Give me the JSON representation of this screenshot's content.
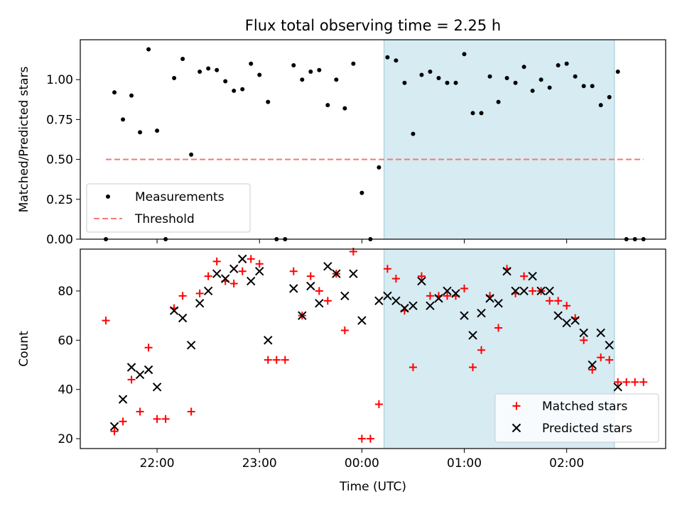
{
  "title": "Flux total observing time = 2.25 h",
  "chart_data": [
    {
      "type": "scatter",
      "ylabel": "Matched/Predicted stars",
      "ylim": [
        0,
        1.25
      ],
      "yticks": [
        0.0,
        0.25,
        0.5,
        0.75,
        1.0
      ],
      "ytick_labels": [
        "0.00",
        "0.25",
        "0.50",
        "0.75",
        "1.00"
      ],
      "x_range": [
        "21:15",
        "02:58"
      ],
      "shaded_interval": [
        "00:13",
        "02:28"
      ],
      "legend_position": "lower-left",
      "series": [
        {
          "name": "Measurements",
          "marker": "dot",
          "color": "#000000",
          "points": [
            {
              "x": "21:30",
              "y": 0.0
            },
            {
              "x": "21:35",
              "y": 0.92
            },
            {
              "x": "21:40",
              "y": 0.75
            },
            {
              "x": "21:45",
              "y": 0.9
            },
            {
              "x": "21:50",
              "y": 0.67
            },
            {
              "x": "21:55",
              "y": 1.19
            },
            {
              "x": "22:00",
              "y": 0.68
            },
            {
              "x": "22:05",
              "y": 0.0
            },
            {
              "x": "22:10",
              "y": 1.01
            },
            {
              "x": "22:15",
              "y": 1.13
            },
            {
              "x": "22:20",
              "y": 0.53
            },
            {
              "x": "22:25",
              "y": 1.05
            },
            {
              "x": "22:30",
              "y": 1.07
            },
            {
              "x": "22:35",
              "y": 1.06
            },
            {
              "x": "22:40",
              "y": 0.99
            },
            {
              "x": "22:45",
              "y": 0.93
            },
            {
              "x": "22:50",
              "y": 0.94
            },
            {
              "x": "22:55",
              "y": 1.1
            },
            {
              "x": "23:00",
              "y": 1.03
            },
            {
              "x": "23:05",
              "y": 0.86
            },
            {
              "x": "23:10",
              "y": 0.0
            },
            {
              "x": "23:15",
              "y": 0.0
            },
            {
              "x": "23:20",
              "y": 1.09
            },
            {
              "x": "23:25",
              "y": 1.0
            },
            {
              "x": "23:30",
              "y": 1.05
            },
            {
              "x": "23:35",
              "y": 1.06
            },
            {
              "x": "23:40",
              "y": 0.84
            },
            {
              "x": "23:45",
              "y": 1.0
            },
            {
              "x": "23:50",
              "y": 0.82
            },
            {
              "x": "23:55",
              "y": 1.1
            },
            {
              "x": "00:00",
              "y": 0.29
            },
            {
              "x": "00:05",
              "y": 0.0
            },
            {
              "x": "00:10",
              "y": 0.45
            },
            {
              "x": "00:15",
              "y": 1.14
            },
            {
              "x": "00:20",
              "y": 1.12
            },
            {
              "x": "00:25",
              "y": 0.98
            },
            {
              "x": "00:30",
              "y": 0.66
            },
            {
              "x": "00:35",
              "y": 1.03
            },
            {
              "x": "00:40",
              "y": 1.05
            },
            {
              "x": "00:45",
              "y": 1.01
            },
            {
              "x": "00:50",
              "y": 0.98
            },
            {
              "x": "00:55",
              "y": 0.98
            },
            {
              "x": "01:00",
              "y": 1.16
            },
            {
              "x": "01:05",
              "y": 0.79
            },
            {
              "x": "01:10",
              "y": 0.79
            },
            {
              "x": "01:15",
              "y": 1.02
            },
            {
              "x": "01:20",
              "y": 0.86
            },
            {
              "x": "01:25",
              "y": 1.01
            },
            {
              "x": "01:30",
              "y": 0.98
            },
            {
              "x": "01:35",
              "y": 1.08
            },
            {
              "x": "01:40",
              "y": 0.93
            },
            {
              "x": "01:45",
              "y": 1.0
            },
            {
              "x": "01:50",
              "y": 0.95
            },
            {
              "x": "01:55",
              "y": 1.09
            },
            {
              "x": "02:00",
              "y": 1.1
            },
            {
              "x": "02:05",
              "y": 1.02
            },
            {
              "x": "02:10",
              "y": 0.96
            },
            {
              "x": "02:15",
              "y": 0.96
            },
            {
              "x": "02:20",
              "y": 0.84
            },
            {
              "x": "02:25",
              "y": 0.89
            },
            {
              "x": "02:30",
              "y": 1.05
            },
            {
              "x": "02:35",
              "y": 0.0
            },
            {
              "x": "02:40",
              "y": 0.0
            },
            {
              "x": "02:45",
              "y": 0.0
            }
          ]
        },
        {
          "name": "Threshold",
          "marker": "dashed-line",
          "color": "#f47a7a",
          "points": [
            {
              "x": "21:30",
              "y": 0.5
            },
            {
              "x": "02:45",
              "y": 0.5
            }
          ]
        }
      ]
    },
    {
      "type": "scatter",
      "ylabel": "Count",
      "xlabel": "Time (UTC)",
      "ylim": [
        16,
        97
      ],
      "yticks": [
        20,
        40,
        60,
        80
      ],
      "ytick_labels": [
        "20",
        "40",
        "60",
        "80"
      ],
      "xticks": [
        "22:00",
        "23:00",
        "00:00",
        "01:00",
        "02:00"
      ],
      "x_range": [
        "21:15",
        "02:58"
      ],
      "shaded_interval": [
        "00:13",
        "02:28"
      ],
      "legend_position": "lower-right",
      "series": [
        {
          "name": "Matched stars",
          "marker": "plus",
          "color": "#ff0000",
          "points": [
            {
              "x": "21:30",
              "y": 68
            },
            {
              "x": "21:35",
              "y": 23
            },
            {
              "x": "21:40",
              "y": 27
            },
            {
              "x": "21:45",
              "y": 44
            },
            {
              "x": "21:50",
              "y": 31
            },
            {
              "x": "21:55",
              "y": 57
            },
            {
              "x": "22:00",
              "y": 28
            },
            {
              "x": "22:05",
              "y": 28
            },
            {
              "x": "22:10",
              "y": 73
            },
            {
              "x": "22:15",
              "y": 78
            },
            {
              "x": "22:20",
              "y": 31
            },
            {
              "x": "22:25",
              "y": 79
            },
            {
              "x": "22:30",
              "y": 86
            },
            {
              "x": "22:35",
              "y": 92
            },
            {
              "x": "22:40",
              "y": 84
            },
            {
              "x": "22:45",
              "y": 83
            },
            {
              "x": "22:50",
              "y": 88
            },
            {
              "x": "22:55",
              "y": 93
            },
            {
              "x": "23:00",
              "y": 91
            },
            {
              "x": "23:05",
              "y": 52
            },
            {
              "x": "23:10",
              "y": 52
            },
            {
              "x": "23:15",
              "y": 52
            },
            {
              "x": "23:20",
              "y": 88
            },
            {
              "x": "23:25",
              "y": 70
            },
            {
              "x": "23:30",
              "y": 86
            },
            {
              "x": "23:35",
              "y": 80
            },
            {
              "x": "23:40",
              "y": 76
            },
            {
              "x": "23:45",
              "y": 87
            },
            {
              "x": "23:50",
              "y": 64
            },
            {
              "x": "23:55",
              "y": 96
            },
            {
              "x": "00:00",
              "y": 20
            },
            {
              "x": "00:05",
              "y": 20
            },
            {
              "x": "00:10",
              "y": 34
            },
            {
              "x": "00:15",
              "y": 89
            },
            {
              "x": "00:20",
              "y": 85
            },
            {
              "x": "00:25",
              "y": 72
            },
            {
              "x": "00:30",
              "y": 49
            },
            {
              "x": "00:35",
              "y": 86
            },
            {
              "x": "00:40",
              "y": 78
            },
            {
              "x": "00:45",
              "y": 78
            },
            {
              "x": "00:50",
              "y": 78
            },
            {
              "x": "00:55",
              "y": 78
            },
            {
              "x": "01:00",
              "y": 81
            },
            {
              "x": "01:05",
              "y": 49
            },
            {
              "x": "01:10",
              "y": 56
            },
            {
              "x": "01:15",
              "y": 78
            },
            {
              "x": "01:20",
              "y": 65
            },
            {
              "x": "01:25",
              "y": 89
            },
            {
              "x": "01:30",
              "y": 79
            },
            {
              "x": "01:35",
              "y": 86
            },
            {
              "x": "01:40",
              "y": 80
            },
            {
              "x": "01:45",
              "y": 80
            },
            {
              "x": "01:50",
              "y": 76
            },
            {
              "x": "01:55",
              "y": 76
            },
            {
              "x": "02:00",
              "y": 74
            },
            {
              "x": "02:05",
              "y": 69
            },
            {
              "x": "02:10",
              "y": 60
            },
            {
              "x": "02:15",
              "y": 48
            },
            {
              "x": "02:20",
              "y": 53
            },
            {
              "x": "02:25",
              "y": 52
            },
            {
              "x": "02:30",
              "y": 43
            },
            {
              "x": "02:35",
              "y": 43
            },
            {
              "x": "02:40",
              "y": 43
            },
            {
              "x": "02:45",
              "y": 43
            }
          ]
        },
        {
          "name": "Predicted stars",
          "marker": "x",
          "color": "#000000",
          "points": [
            {
              "x": "21:35",
              "y": 25
            },
            {
              "x": "21:40",
              "y": 36
            },
            {
              "x": "21:45",
              "y": 49
            },
            {
              "x": "21:50",
              "y": 46
            },
            {
              "x": "21:55",
              "y": 48
            },
            {
              "x": "22:00",
              "y": 41
            },
            {
              "x": "22:10",
              "y": 72
            },
            {
              "x": "22:15",
              "y": 69
            },
            {
              "x": "22:20",
              "y": 58
            },
            {
              "x": "22:25",
              "y": 75
            },
            {
              "x": "22:30",
              "y": 80
            },
            {
              "x": "22:35",
              "y": 87
            },
            {
              "x": "22:40",
              "y": 85
            },
            {
              "x": "22:45",
              "y": 89
            },
            {
              "x": "22:50",
              "y": 93
            },
            {
              "x": "22:55",
              "y": 84
            },
            {
              "x": "23:00",
              "y": 88
            },
            {
              "x": "23:05",
              "y": 60
            },
            {
              "x": "23:20",
              "y": 81
            },
            {
              "x": "23:25",
              "y": 70
            },
            {
              "x": "23:30",
              "y": 82
            },
            {
              "x": "23:35",
              "y": 75
            },
            {
              "x": "23:40",
              "y": 90
            },
            {
              "x": "23:45",
              "y": 87
            },
            {
              "x": "23:50",
              "y": 78
            },
            {
              "x": "23:55",
              "y": 87
            },
            {
              "x": "00:00",
              "y": 68
            },
            {
              "x": "00:10",
              "y": 76
            },
            {
              "x": "00:15",
              "y": 78
            },
            {
              "x": "00:20",
              "y": 76
            },
            {
              "x": "00:25",
              "y": 73
            },
            {
              "x": "00:30",
              "y": 74
            },
            {
              "x": "00:35",
              "y": 84
            },
            {
              "x": "00:40",
              "y": 74
            },
            {
              "x": "00:45",
              "y": 77
            },
            {
              "x": "00:50",
              "y": 80
            },
            {
              "x": "00:55",
              "y": 79
            },
            {
              "x": "01:00",
              "y": 70
            },
            {
              "x": "01:05",
              "y": 62
            },
            {
              "x": "01:10",
              "y": 71
            },
            {
              "x": "01:15",
              "y": 77
            },
            {
              "x": "01:20",
              "y": 75
            },
            {
              "x": "01:25",
              "y": 88
            },
            {
              "x": "01:30",
              "y": 80
            },
            {
              "x": "01:35",
              "y": 80
            },
            {
              "x": "01:40",
              "y": 86
            },
            {
              "x": "01:45",
              "y": 80
            },
            {
              "x": "01:50",
              "y": 80
            },
            {
              "x": "01:55",
              "y": 70
            },
            {
              "x": "02:00",
              "y": 67
            },
            {
              "x": "02:05",
              "y": 68
            },
            {
              "x": "02:10",
              "y": 63
            },
            {
              "x": "02:15",
              "y": 50
            },
            {
              "x": "02:20",
              "y": 63
            },
            {
              "x": "02:25",
              "y": 58
            },
            {
              "x": "02:30",
              "y": 41
            }
          ]
        }
      ]
    }
  ]
}
